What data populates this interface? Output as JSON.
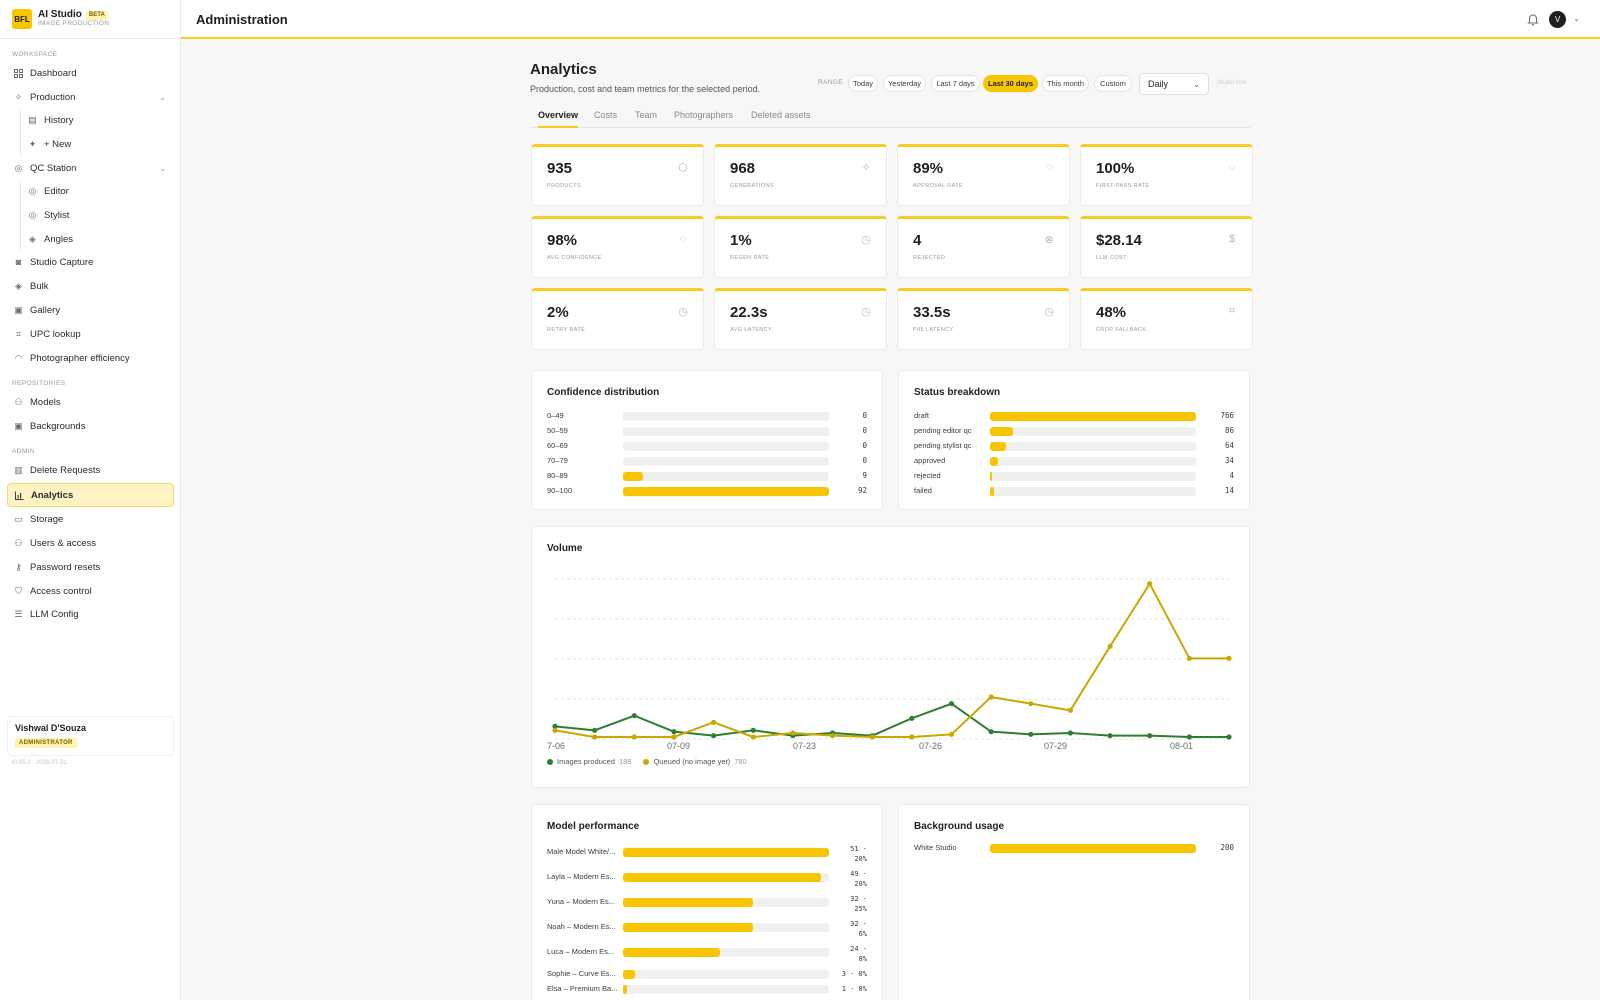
{
  "brand": {
    "name": "AI Studio",
    "badge": "BETA",
    "subtitle": "IMAGE PRODUCTION",
    "logo": "BFL"
  },
  "sidebar": {
    "sections": {
      "workspace": "WORKSPACE",
      "repositories": "REPOSITORIES",
      "admin": "ADMIN"
    },
    "items": {
      "dashboard": "Dashboard",
      "production": "Production",
      "history": "History",
      "new": "+ New",
      "qc_station": "QC Station",
      "editor": "Editor",
      "stylist": "Stylist",
      "angles": "Angles",
      "studio_capture": "Studio Capture",
      "bulk": "Bulk",
      "gallery": "Gallery",
      "upc_lookup": "UPC lookup",
      "photographer_efficiency": "Photographer efficiency",
      "models": "Models",
      "backgrounds": "Backgrounds",
      "delete_requests": "Delete Requests",
      "analytics": "Analytics",
      "storage": "Storage",
      "users_access": "Users & access",
      "password_resets": "Password resets",
      "access_control": "Access control",
      "llm_config": "LLM Config"
    },
    "user": {
      "name": "Vishwal D'Souza",
      "role": "ADMINISTRATOR"
    },
    "version": "v0.85.1 · 2026-07-31"
  },
  "header": {
    "title": "Administration",
    "avatar_initial": "V"
  },
  "page": {
    "title": "Analytics",
    "subtitle": "Production, cost and team metrics for the selected period.",
    "range_label": "RANGE",
    "ranges": [
      "Today",
      "Yesterday",
      "Last 7 days",
      "Last 30 days",
      "This month",
      "Custom"
    ],
    "active_range": "Last 30 days",
    "granularity": "Daily",
    "studio_time": "Studio time",
    "tabs": [
      "Overview",
      "Costs",
      "Team",
      "Photographers",
      "Deleted assets"
    ],
    "active_tab": "Overview"
  },
  "kpis": [
    {
      "value": "935",
      "label": "PRODUCTS",
      "icon": "box-icon"
    },
    {
      "value": "968",
      "label": "GENERATIONS",
      "icon": "wand-icon"
    },
    {
      "value": "89%",
      "label": "APPROVAL RATE",
      "icon": "check-circle-icon"
    },
    {
      "value": "100%",
      "label": "FIRST-PASS RATE",
      "icon": "check-circle-icon"
    },
    {
      "value": "98%",
      "label": "AVG CONFIDENCE",
      "icon": "check-circle-icon"
    },
    {
      "value": "1%",
      "label": "REGEN RATE",
      "icon": "clock-icon"
    },
    {
      "value": "4",
      "label": "REJECTED",
      "icon": "x-circle-icon"
    },
    {
      "value": "$28.14",
      "label": "LLM COST",
      "icon": "dollar-icon"
    },
    {
      "value": "2%",
      "label": "RETRY RATE",
      "icon": "clock-icon"
    },
    {
      "value": "22.3s",
      "label": "AVG LATENCY",
      "icon": "clock-icon"
    },
    {
      "value": "33.5s",
      "label": "P95 LATENCY",
      "icon": "clock-icon"
    },
    {
      "value": "48%",
      "label": "CROP FALLBACK",
      "icon": "crop-icon"
    }
  ],
  "confidence": {
    "title": "Confidence distribution",
    "rows": [
      {
        "label": "0–49",
        "value": "0",
        "fill": 0
      },
      {
        "label": "50–59",
        "value": "0",
        "fill": 0
      },
      {
        "label": "60–69",
        "value": "0",
        "fill": 0
      },
      {
        "label": "70–79",
        "value": "0",
        "fill": 0
      },
      {
        "label": "80–89",
        "value": "9",
        "fill": 0.098
      },
      {
        "label": "90–100",
        "value": "92",
        "fill": 1
      }
    ]
  },
  "status": {
    "title": "Status breakdown",
    "rows": [
      {
        "label": "draft",
        "value": "766",
        "fill": 1
      },
      {
        "label": "pending editor qc",
        "value": "86",
        "fill": 0.11
      },
      {
        "label": "pending stylist qc",
        "value": "64",
        "fill": 0.08
      },
      {
        "label": "approved",
        "value": "34",
        "fill": 0.04
      },
      {
        "label": "rejected",
        "value": "4",
        "fill": 0.008
      },
      {
        "label": "failed",
        "value": "14",
        "fill": 0.018
      }
    ]
  },
  "volume": {
    "title": "Volume",
    "ticks": [
      "7-06",
      "07-09",
      "07-23",
      "07-26",
      "07-29",
      "08-01"
    ],
    "legend": [
      {
        "name": "Images produced",
        "count": "188",
        "color": "#2e7d32"
      },
      {
        "name": "Queued (no image yet)",
        "count": "780",
        "color": "#c9a800"
      }
    ]
  },
  "chart_data": {
    "type": "line",
    "title": "Volume",
    "x": [
      "7-06",
      "",
      "",
      "07-09",
      "",
      "",
      "07-23",
      "",
      "",
      "07-26",
      "",
      "",
      "07-29",
      "",
      "",
      "08-01",
      "",
      ""
    ],
    "series": [
      {
        "name": "Images produced",
        "values": [
          8,
          5,
          16,
          4,
          1,
          5,
          1,
          3,
          1,
          14,
          25,
          4,
          2,
          3,
          1,
          1,
          0,
          0
        ]
      },
      {
        "name": "Queued (no image yet)",
        "values": [
          5,
          0,
          0,
          0,
          11,
          0,
          3,
          1,
          0,
          0,
          2,
          30,
          25,
          20,
          68,
          115,
          59,
          59
        ]
      }
    ],
    "ylim": [
      0,
      120
    ],
    "grid": true,
    "legend_position": "bottom-left"
  },
  "model_perf": {
    "title": "Model performance",
    "rows": [
      {
        "label": "Male Model White/...",
        "v1": "51 ·",
        "v2": "20%",
        "fill": 1
      },
      {
        "label": "Layla – Modern Es...",
        "v1": "49 ·",
        "v2": "20%",
        "fill": 0.96
      },
      {
        "label": "Yuna – Modern Es...",
        "v1": "32 ·",
        "v2": "25%",
        "fill": 0.63
      },
      {
        "label": "Noah – Modern Es...",
        "v1": "32 ·",
        "v2": "6%",
        "fill": 0.63
      },
      {
        "label": "Luca – Modern Es...",
        "v1": "24 ·",
        "v2": "8%",
        "fill": 0.47
      },
      {
        "label": "Sophie – Curve Es...",
        "v1": "3 · 0%",
        "v2": "",
        "fill": 0.06
      },
      {
        "label": "Elsa – Premium Ba...",
        "v1": "1 · 0%",
        "v2": "",
        "fill": 0.02
      }
    ]
  },
  "background_usage": {
    "title": "Background usage",
    "rows": [
      {
        "label": "White Studio",
        "value": "200",
        "fill": 1
      }
    ]
  }
}
